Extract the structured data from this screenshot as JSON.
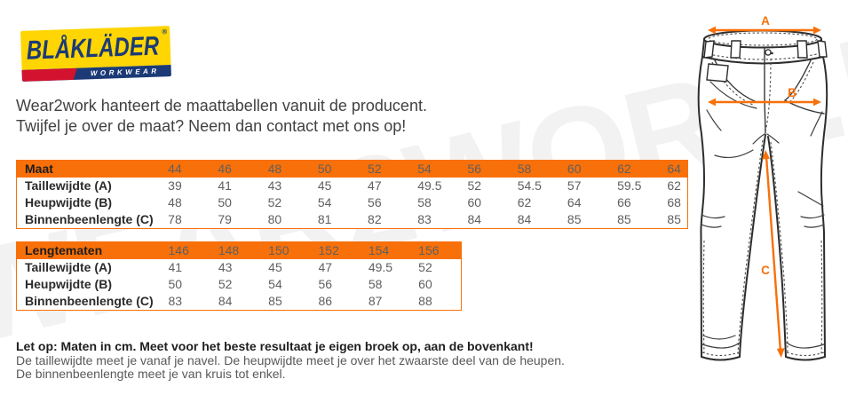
{
  "colors": {
    "accent": "#f8700a",
    "logo_yellow": "#ffd503",
    "logo_navy": "#1b3a76",
    "logo_red": "#d2122e",
    "watermark": "#f2f2f2",
    "line_dark": "#2d2d2d"
  },
  "watermark_text": "WEAR2WORK.NL",
  "logo": {
    "brand": "BLÅKLÄDER",
    "registered": "®",
    "sub": "WORKWEAR"
  },
  "intro": {
    "line1": "Wear2work hanteert de maattabellen vanuit de producent.",
    "line2": "Twijfel je over de maat? Neem dan contact met ons op!"
  },
  "size_table": {
    "header_label": "Maat",
    "sizes": [
      "44",
      "46",
      "48",
      "50",
      "52",
      "54",
      "56",
      "58",
      "60",
      "62",
      "64"
    ],
    "rows": [
      {
        "label": "Taillewijdte (A)",
        "values": [
          "39",
          "41",
          "43",
          "45",
          "47",
          "49.5",
          "52",
          "54.5",
          "57",
          "59.5",
          "62"
        ]
      },
      {
        "label": "Heupwijdte (B)",
        "values": [
          "48",
          "50",
          "52",
          "54",
          "56",
          "58",
          "60",
          "62",
          "64",
          "66",
          "68"
        ]
      },
      {
        "label": "Binnenbeenlengte (C)",
        "values": [
          "78",
          "79",
          "80",
          "81",
          "82",
          "83",
          "84",
          "84",
          "85",
          "85",
          "85"
        ]
      }
    ]
  },
  "length_table": {
    "header_label": "Lengtematen",
    "sizes": [
      "146",
      "148",
      "150",
      "152",
      "154",
      "156"
    ],
    "rows": [
      {
        "label": "Taillewijdte (A)",
        "values": [
          "41",
          "43",
          "45",
          "47",
          "49.5",
          "52"
        ]
      },
      {
        "label": "Heupwijdte (B)",
        "values": [
          "50",
          "52",
          "54",
          "56",
          "58",
          "60"
        ]
      },
      {
        "label": "Binnenbeenlengte (C)",
        "values": [
          "83",
          "84",
          "85",
          "86",
          "87",
          "88"
        ]
      }
    ]
  },
  "notes": {
    "bold": "Let op: Maten in cm. Meet voor het beste resultaat je eigen broek op, aan de bovenkant!",
    "line2": "De taillewijdte meet je vanaf je navel. De heupwijdte meet je over het zwaarste deel van de heupen.",
    "line3": "De binnenbeenlengte meet je van kruis tot enkel."
  },
  "diagram": {
    "label_a": "A",
    "label_b": "B",
    "label_c": "C"
  }
}
